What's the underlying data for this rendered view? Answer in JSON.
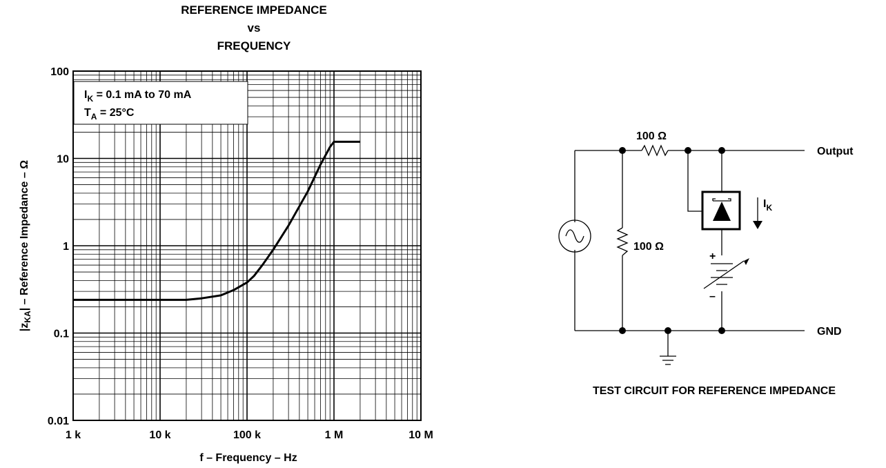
{
  "chart_data": {
    "type": "line",
    "title_lines": [
      "REFERENCE IMPEDANCE",
      "vs",
      "FREQUENCY"
    ],
    "xlabel": "f – Frequency – Hz",
    "ylabel_prefix": "|z",
    "ylabel_sub": "KA",
    "ylabel_suffix": "| – Reference Impedance – Ω",
    "x_scale": "log",
    "y_scale": "log",
    "xlim": [
      1000,
      10000000
    ],
    "ylim": [
      0.01,
      100
    ],
    "x_ticks": [
      {
        "value": 1000,
        "label": "1 k"
      },
      {
        "value": 10000,
        "label": "10 k"
      },
      {
        "value": 100000,
        "label": "100 k"
      },
      {
        "value": 1000000,
        "label": "1 M"
      },
      {
        "value": 10000000,
        "label": "10 M"
      }
    ],
    "y_ticks": [
      {
        "value": 0.01,
        "label": "0.01"
      },
      {
        "value": 0.1,
        "label": "0.1"
      },
      {
        "value": 1,
        "label": "1"
      },
      {
        "value": 10,
        "label": "10"
      },
      {
        "value": 100,
        "label": "100"
      }
    ],
    "grid": true,
    "annotation": {
      "line1_main": "I",
      "line1_sub": "K",
      "line1_rest": " = 0.1 mA to 70 mA",
      "line2_main": "T",
      "line2_sub": "A",
      "line2_rest": " = 25°C",
      "placement": "top-left"
    },
    "series": [
      {
        "x": [
          1000,
          20000,
          30000,
          50000,
          70000,
          100000,
          120000,
          150000,
          200000,
          300000,
          500000,
          700000,
          900000,
          1000000,
          2000000
        ],
        "y": [
          0.24,
          0.24,
          0.25,
          0.27,
          0.31,
          0.38,
          0.45,
          0.6,
          0.9,
          1.7,
          4.2,
          8.5,
          13.5,
          15.5,
          15.5
        ]
      }
    ]
  },
  "circuit": {
    "resistor_series_label": "100 Ω",
    "resistor_shunt_label": "100 Ω",
    "current_label_main": "I",
    "current_label_sub": "K",
    "plus_label": "+",
    "minus_label": "–",
    "output_label": "Output",
    "gnd_label": "GND",
    "caption": "TEST CIRCUIT FOR REFERENCE IMPEDANCE"
  }
}
